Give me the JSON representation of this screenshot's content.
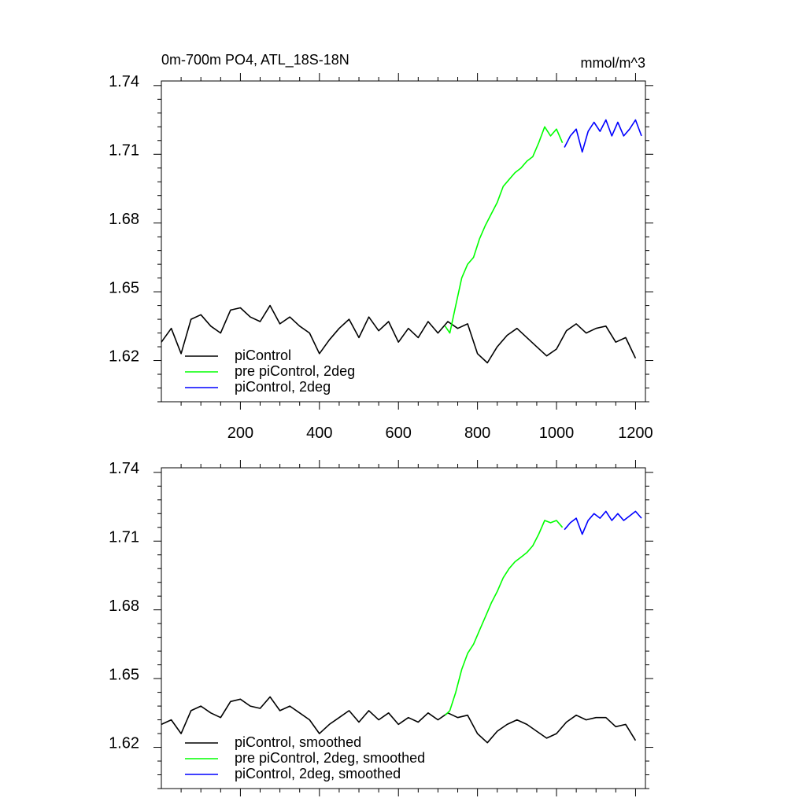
{
  "header": {
    "title": "0m-700m PO4, ATL_18S-18N",
    "units": "mmol/m^3"
  },
  "colors": {
    "piControl": "#000000",
    "pre_2deg": "#00ff00",
    "pi_2deg": "#0000ff"
  },
  "chart_data": [
    {
      "type": "line",
      "title": "0m-700m PO4, ATL_18S-18N",
      "units": "mmol/m^3",
      "xlim": [
        0,
        1225
      ],
      "ylim": [
        1.6,
        1.74
      ],
      "xticks": [
        200,
        400,
        600,
        800,
        1000,
        1200
      ],
      "xtick_labels": [
        "200",
        "400",
        "600",
        "800",
        "1000",
        "1200"
      ],
      "yticks": [
        1.62,
        1.65,
        1.68,
        1.71,
        1.74
      ],
      "ytick_labels": [
        "1.62",
        "1.65",
        "1.68",
        "1.71",
        "1.74"
      ],
      "legend_position": "bottom-left",
      "series": [
        {
          "name": "piControl",
          "color": "#000000",
          "x": [
            0,
            25,
            50,
            75,
            100,
            125,
            150,
            175,
            200,
            225,
            250,
            275,
            300,
            325,
            350,
            375,
            400,
            425,
            450,
            475,
            500,
            525,
            550,
            575,
            600,
            625,
            650,
            675,
            700,
            725,
            750,
            775,
            800,
            825,
            850,
            875,
            900,
            925,
            950,
            975,
            1000,
            1025,
            1050,
            1075,
            1100,
            1125,
            1150,
            1175,
            1200
          ],
          "y": [
            1.626,
            1.632,
            1.621,
            1.636,
            1.638,
            1.633,
            1.63,
            1.64,
            1.641,
            1.637,
            1.635,
            1.642,
            1.634,
            1.637,
            1.633,
            1.63,
            1.621,
            1.627,
            1.632,
            1.636,
            1.628,
            1.637,
            1.631,
            1.635,
            1.626,
            1.632,
            1.628,
            1.635,
            1.63,
            1.635,
            1.632,
            1.634,
            1.621,
            1.617,
            1.624,
            1.629,
            1.632,
            1.628,
            1.624,
            1.62,
            1.623,
            1.631,
            1.634,
            1.63,
            1.632,
            1.633,
            1.626,
            1.628,
            1.619
          ]
        },
        {
          "name": "pre piControl, 2deg",
          "color": "#00ff00",
          "x": [
            718,
            730,
            745,
            760,
            775,
            790,
            805,
            820,
            835,
            850,
            865,
            880,
            895,
            910,
            925,
            940,
            955,
            970,
            985,
            1000,
            1015
          ],
          "y": [
            1.633,
            1.63,
            1.642,
            1.654,
            1.66,
            1.663,
            1.671,
            1.677,
            1.682,
            1.687,
            1.694,
            1.697,
            1.7,
            1.702,
            1.705,
            1.707,
            1.713,
            1.72,
            1.716,
            1.719,
            1.713
          ]
        },
        {
          "name": "piControl, 2deg",
          "color": "#0000ff",
          "x": [
            1020,
            1035,
            1050,
            1065,
            1080,
            1095,
            1110,
            1125,
            1140,
            1155,
            1170,
            1185,
            1200,
            1215
          ],
          "y": [
            1.711,
            1.716,
            1.719,
            1.709,
            1.718,
            1.722,
            1.718,
            1.723,
            1.716,
            1.722,
            1.716,
            1.719,
            1.723,
            1.716
          ]
        }
      ]
    },
    {
      "type": "line",
      "xlim": [
        0,
        1225
      ],
      "ylim": [
        1.6,
        1.74
      ],
      "xticks": [
        200,
        400,
        600,
        800,
        1000,
        1200
      ],
      "yticks": [
        1.62,
        1.65,
        1.68,
        1.71,
        1.74
      ],
      "ytick_labels": [
        "1.62",
        "1.65",
        "1.68",
        "1.71",
        "1.74"
      ],
      "legend_position": "bottom-left",
      "series": [
        {
          "name": "piControl, smoothed",
          "color": "#000000",
          "x": [
            0,
            25,
            50,
            75,
            100,
            125,
            150,
            175,
            200,
            225,
            250,
            275,
            300,
            325,
            350,
            375,
            400,
            425,
            450,
            475,
            500,
            525,
            550,
            575,
            600,
            625,
            650,
            675,
            700,
            725,
            750,
            775,
            800,
            825,
            850,
            875,
            900,
            925,
            950,
            975,
            1000,
            1025,
            1050,
            1075,
            1100,
            1125,
            1150,
            1175,
            1200
          ],
          "y": [
            1.628,
            1.63,
            1.624,
            1.634,
            1.636,
            1.633,
            1.631,
            1.638,
            1.639,
            1.636,
            1.635,
            1.64,
            1.634,
            1.636,
            1.633,
            1.63,
            1.624,
            1.628,
            1.631,
            1.634,
            1.629,
            1.634,
            1.63,
            1.633,
            1.628,
            1.631,
            1.629,
            1.633,
            1.63,
            1.633,
            1.631,
            1.632,
            1.624,
            1.62,
            1.625,
            1.628,
            1.63,
            1.628,
            1.625,
            1.622,
            1.624,
            1.629,
            1.632,
            1.63,
            1.631,
            1.631,
            1.627,
            1.628,
            1.621
          ]
        },
        {
          "name": "pre piControl, 2deg, smoothed",
          "color": "#00ff00",
          "x": [
            718,
            730,
            745,
            760,
            775,
            790,
            805,
            820,
            835,
            850,
            865,
            880,
            895,
            910,
            925,
            940,
            955,
            970,
            985,
            1000,
            1015
          ],
          "y": [
            1.632,
            1.634,
            1.642,
            1.652,
            1.659,
            1.663,
            1.669,
            1.675,
            1.681,
            1.686,
            1.692,
            1.696,
            1.699,
            1.701,
            1.703,
            1.706,
            1.711,
            1.717,
            1.716,
            1.717,
            1.714
          ]
        },
        {
          "name": "piControl, 2deg, smoothed",
          "color": "#0000ff",
          "x": [
            1020,
            1035,
            1050,
            1065,
            1080,
            1095,
            1110,
            1125,
            1140,
            1155,
            1170,
            1185,
            1200,
            1215
          ],
          "y": [
            1.713,
            1.716,
            1.718,
            1.711,
            1.717,
            1.72,
            1.718,
            1.721,
            1.717,
            1.72,
            1.717,
            1.719,
            1.721,
            1.718
          ]
        }
      ]
    }
  ]
}
